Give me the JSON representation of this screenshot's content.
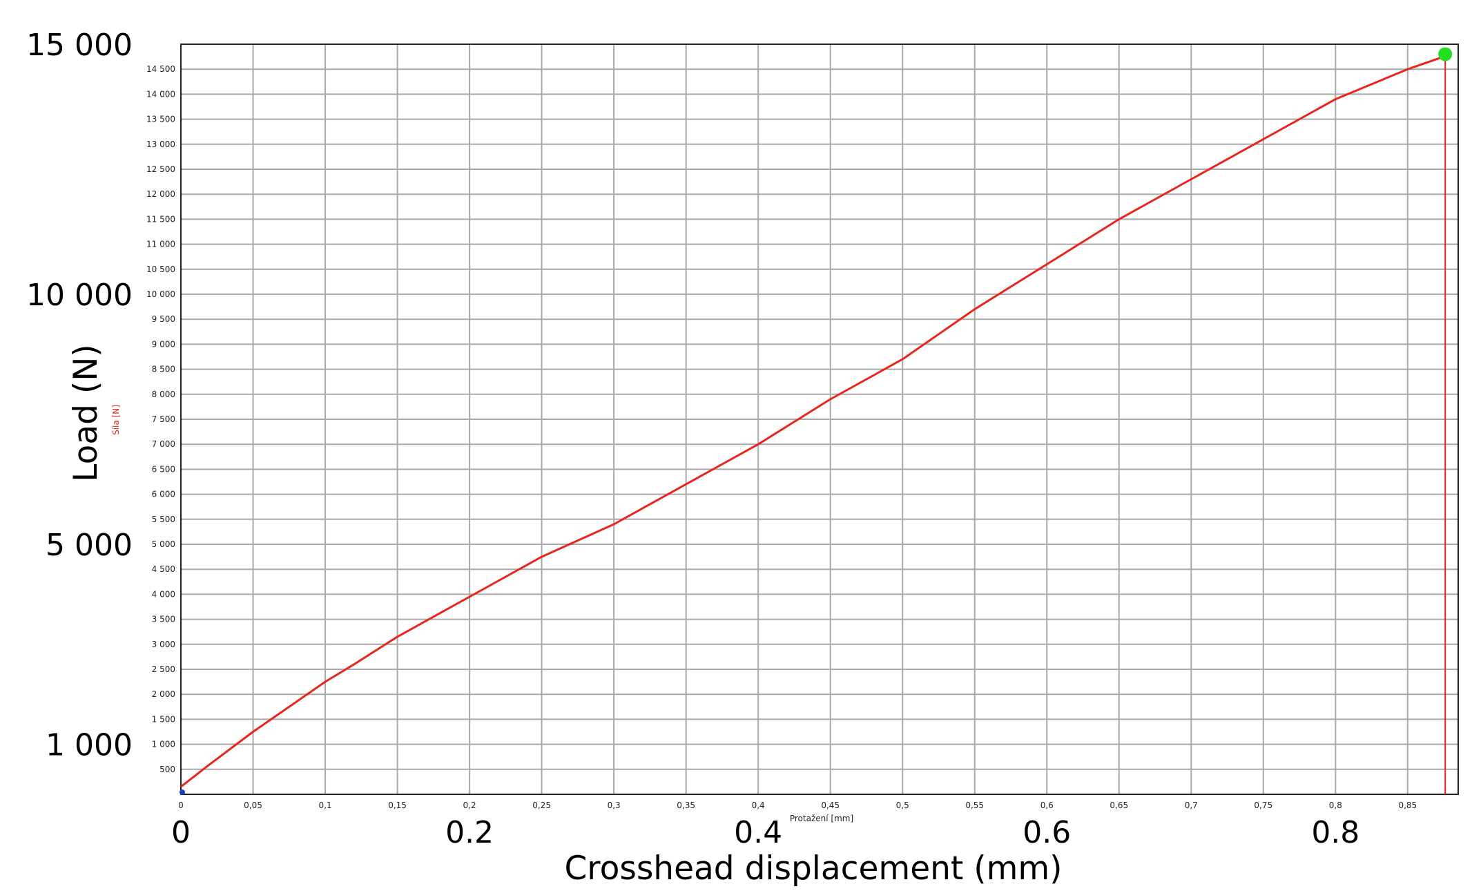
{
  "chart_data": {
    "type": "line",
    "xlabel": "Crosshead displacement (mm)",
    "ylabel": "Load (N)",
    "inner_xlabel": "Protažení [mm]",
    "inner_ylabel": "Síla [N]",
    "xlim": [
      0,
      0.885
    ],
    "ylim": [
      0,
      15000
    ],
    "grid": true,
    "line_color": "#e8261c",
    "end_marker_color": "#22dd22",
    "x_small_ticks": [
      {
        "value": 0,
        "label": "0"
      },
      {
        "value": 0.05,
        "label": "0,05"
      },
      {
        "value": 0.1,
        "label": "0,1"
      },
      {
        "value": 0.15,
        "label": "0,15"
      },
      {
        "value": 0.2,
        "label": "0,2"
      },
      {
        "value": 0.25,
        "label": "0,25"
      },
      {
        "value": 0.3,
        "label": "0,3"
      },
      {
        "value": 0.35,
        "label": "0,35"
      },
      {
        "value": 0.4,
        "label": "0,4"
      },
      {
        "value": 0.45,
        "label": "0,45"
      },
      {
        "value": 0.5,
        "label": "0,5"
      },
      {
        "value": 0.55,
        "label": "0,55"
      },
      {
        "value": 0.6,
        "label": "0,6"
      },
      {
        "value": 0.65,
        "label": "0,65"
      },
      {
        "value": 0.7,
        "label": "0,7"
      },
      {
        "value": 0.75,
        "label": "0,75"
      },
      {
        "value": 0.8,
        "label": "0,8"
      },
      {
        "value": 0.85,
        "label": "0,85"
      }
    ],
    "y_small_ticks": [
      {
        "value": 500,
        "label": "500"
      },
      {
        "value": 1000,
        "label": "1 000"
      },
      {
        "value": 1500,
        "label": "1 500"
      },
      {
        "value": 2000,
        "label": "2 000"
      },
      {
        "value": 2500,
        "label": "2 500"
      },
      {
        "value": 3000,
        "label": "3 000"
      },
      {
        "value": 3500,
        "label": "3 500"
      },
      {
        "value": 4000,
        "label": "4 000"
      },
      {
        "value": 4500,
        "label": "4 500"
      },
      {
        "value": 5000,
        "label": "5 000"
      },
      {
        "value": 5500,
        "label": "5 500"
      },
      {
        "value": 6000,
        "label": "6 000"
      },
      {
        "value": 6500,
        "label": "6 500"
      },
      {
        "value": 7000,
        "label": "7 000"
      },
      {
        "value": 7500,
        "label": "7 500"
      },
      {
        "value": 8000,
        "label": "8 000"
      },
      {
        "value": 8500,
        "label": "8 500"
      },
      {
        "value": 9000,
        "label": "9 000"
      },
      {
        "value": 9500,
        "label": "9 500"
      },
      {
        "value": 10000,
        "label": "10 000"
      },
      {
        "value": 10500,
        "label": "10 500"
      },
      {
        "value": 11000,
        "label": "11 000"
      },
      {
        "value": 11500,
        "label": "11 500"
      },
      {
        "value": 12000,
        "label": "12 000"
      },
      {
        "value": 12500,
        "label": "12 500"
      },
      {
        "value": 13000,
        "label": "13 000"
      },
      {
        "value": 13500,
        "label": "13 500"
      },
      {
        "value": 14000,
        "label": "14 000"
      },
      {
        "value": 14500,
        "label": "14 500"
      }
    ],
    "x_overlay_ticks": [
      {
        "value": 0,
        "label": "0"
      },
      {
        "value": 0.2,
        "label": "0.2"
      },
      {
        "value": 0.4,
        "label": "0.4"
      },
      {
        "value": 0.6,
        "label": "0.6"
      },
      {
        "value": 0.8,
        "label": "0.8"
      }
    ],
    "y_overlay_ticks": [
      {
        "value": 1000,
        "label": "1 000"
      },
      {
        "value": 5000,
        "label": "5 000"
      },
      {
        "value": 10000,
        "label": "10 000"
      },
      {
        "value": 15000,
        "label": "15 000"
      }
    ],
    "series": [
      {
        "x": [
          0,
          0.02,
          0.05,
          0.08,
          0.1,
          0.12,
          0.15,
          0.2,
          0.25,
          0.3,
          0.35,
          0.4,
          0.45,
          0.5,
          0.55,
          0.6,
          0.65,
          0.7,
          0.75,
          0.8,
          0.85,
          0.875
        ],
        "y": [
          150,
          600,
          1250,
          1850,
          2250,
          2600,
          3150,
          3950,
          4750,
          5400,
          6200,
          7000,
          7900,
          8700,
          9700,
          10600,
          11500,
          12300,
          13100,
          13900,
          14500,
          14750
        ]
      }
    ],
    "end_marker": {
      "x": 0.876,
      "y": 14800
    }
  }
}
